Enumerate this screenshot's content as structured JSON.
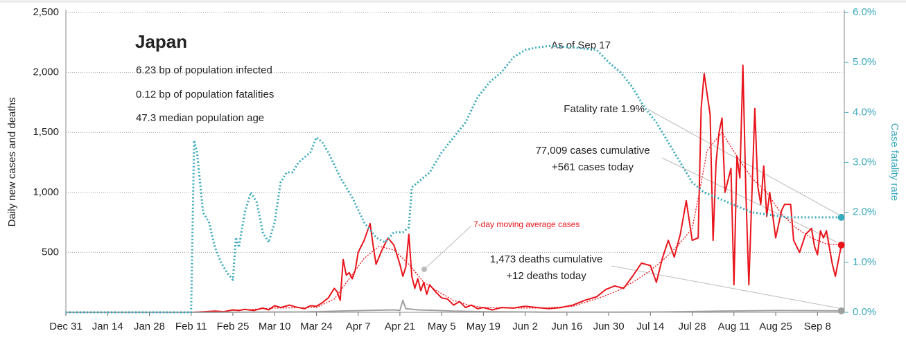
{
  "chart_data": {
    "type": "line",
    "title": "Japan",
    "annotations": [
      "6.23 bp of population infected",
      "0.12 bp of population fatalities",
      "47.3 median population age",
      "As of Sep 17",
      "Fatality rate 1.9%",
      "77,009 cases cumulative",
      "+561 cases today",
      "1,473 deaths cumulative",
      "+12 deaths today",
      "7-day moving average cases"
    ],
    "ylabel": "Daily new cases and deaths",
    "y2label": "Case fatality rate",
    "xlim": [
      0,
      261
    ],
    "xticks": [
      {
        "value": 0,
        "label": "Dec 31"
      },
      {
        "value": 14,
        "label": "Jan 14"
      },
      {
        "value": 28,
        "label": "Jan 28"
      },
      {
        "value": 42,
        "label": "Feb 11"
      },
      {
        "value": 56,
        "label": "Feb 25"
      },
      {
        "value": 70,
        "label": "Mar 10"
      },
      {
        "value": 84,
        "label": "Mar 24"
      },
      {
        "value": 98,
        "label": "Apr 7"
      },
      {
        "value": 112,
        "label": "Apr 21"
      },
      {
        "value": 126,
        "label": "May 5"
      },
      {
        "value": 140,
        "label": "May 19"
      },
      {
        "value": 154,
        "label": "Jun 2"
      },
      {
        "value": 168,
        "label": "Jun 16"
      },
      {
        "value": 182,
        "label": "Jun 30"
      },
      {
        "value": 196,
        "label": "Jul 14"
      },
      {
        "value": 210,
        "label": "Jul 28"
      },
      {
        "value": 224,
        "label": "Aug 11"
      },
      {
        "value": 238,
        "label": "Aug 25"
      },
      {
        "value": 252,
        "label": "Sep 8"
      }
    ],
    "ylim": [
      0,
      2500
    ],
    "yticks": [
      {
        "value": 500,
        "label": "500"
      },
      {
        "value": 1000,
        "label": "1,000"
      },
      {
        "value": 1500,
        "label": "1,500"
      },
      {
        "value": 2000,
        "label": "2,000"
      },
      {
        "value": 2500,
        "label": "2,500"
      }
    ],
    "y2lim": [
      0,
      6
    ],
    "y2ticks": [
      {
        "value": 0,
        "label": "0.0%"
      },
      {
        "value": 1,
        "label": "1.0%"
      },
      {
        "value": 2,
        "label": "2.0%"
      },
      {
        "value": 3,
        "label": "3.0%"
      },
      {
        "value": 4,
        "label": "4.0%"
      },
      {
        "value": 5,
        "label": "5.0%"
      },
      {
        "value": 6,
        "label": "6.0%"
      }
    ],
    "grid": true,
    "series": [
      {
        "name": "Daily new cases",
        "color": "#e8141b",
        "dotted": false,
        "end_dot": true,
        "x": [
          0,
          7,
          14,
          21,
          28,
          35,
          42,
          45,
          50,
          53,
          56,
          58,
          60,
          63,
          66,
          68,
          70,
          72,
          75,
          77,
          80,
          82,
          84,
          86,
          88,
          90,
          91,
          92,
          93,
          94,
          95,
          96,
          97,
          98,
          100,
          102,
          103,
          104,
          106,
          108,
          110,
          112,
          113,
          114,
          115,
          116,
          117,
          118,
          119,
          120,
          121,
          122,
          124,
          126,
          128,
          130,
          132,
          134,
          136,
          138,
          140,
          143,
          146,
          150,
          154,
          158,
          162,
          166,
          170,
          174,
          178,
          181,
          184,
          187,
          190,
          193,
          196,
          198,
          200,
          202,
          204,
          206,
          208,
          210,
          212,
          213,
          214,
          216,
          217,
          218,
          219,
          220,
          221,
          223,
          224,
          225,
          226,
          227,
          228,
          229,
          231,
          232,
          233,
          234,
          235,
          236,
          238,
          240,
          241,
          243,
          244,
          246,
          248,
          250,
          251,
          252,
          253,
          254,
          255,
          257,
          258,
          260
        ],
        "values": [
          0,
          0,
          0,
          0,
          0,
          0,
          0,
          3,
          10,
          5,
          20,
          15,
          25,
          15,
          35,
          20,
          55,
          40,
          60,
          45,
          30,
          55,
          50,
          80,
          120,
          200,
          170,
          100,
          440,
          310,
          330,
          280,
          350,
          500,
          600,
          740,
          560,
          400,
          520,
          620,
          560,
          400,
          300,
          380,
          650,
          300,
          200,
          280,
          180,
          250,
          150,
          230,
          170,
          120,
          110,
          60,
          90,
          40,
          60,
          30,
          40,
          20,
          40,
          35,
          50,
          40,
          30,
          40,
          60,
          100,
          130,
          190,
          220,
          200,
          300,
          410,
          390,
          250,
          450,
          600,
          460,
          650,
          930,
          600,
          620,
          1700,
          1990,
          1650,
          600,
          1250,
          1500,
          1620,
          1000,
          1200,
          230,
          1300,
          1120,
          2060,
          1000,
          230,
          1700,
          1050,
          900,
          1220,
          800,
          1000,
          620,
          850,
          900,
          900,
          600,
          500,
          650,
          700,
          550,
          480,
          680,
          620,
          680,
          400,
          300,
          561
        ]
      },
      {
        "name": "7-day moving average cases",
        "color": "#e8141b",
        "dotted": true,
        "end_dot": false,
        "x": [
          56,
          70,
          84,
          90,
          95,
          100,
          105,
          110,
          115,
          120,
          125,
          130,
          135,
          140,
          150,
          160,
          170,
          175,
          180,
          185,
          190,
          195,
          200,
          205,
          210,
          212,
          215,
          220,
          225,
          230,
          235,
          240,
          245,
          250,
          255,
          260
        ],
        "values": [
          15,
          35,
          40,
          110,
          280,
          450,
          550,
          520,
          400,
          250,
          170,
          100,
          60,
          40,
          35,
          35,
          50,
          90,
          130,
          180,
          250,
          330,
          430,
          550,
          700,
          950,
          1350,
          1500,
          1300,
          1120,
          1000,
          820,
          700,
          620,
          570,
          560
        ]
      },
      {
        "name": "Daily deaths",
        "color": "#a0a0a0",
        "dotted": false,
        "end_dot": true,
        "x": [
          0,
          50,
          60,
          80,
          100,
          110,
          112,
          113,
          114,
          118,
          125,
          130,
          140,
          160,
          180,
          200,
          220,
          240,
          260
        ],
        "values": [
          0,
          0,
          2,
          3,
          15,
          20,
          15,
          100,
          30,
          20,
          15,
          10,
          5,
          2,
          1,
          3,
          10,
          15,
          12
        ]
      },
      {
        "name": "Case fatality rate",
        "color": "#3aa9bd",
        "dotted": true,
        "end_dot": true,
        "axis": "y2",
        "x": [
          0,
          42,
          43,
          44,
          46,
          48,
          50,
          52,
          54,
          56,
          57,
          58,
          60,
          62,
          64,
          66,
          68,
          70,
          72,
          74,
          76,
          78,
          80,
          82,
          84,
          86,
          88,
          92,
          96,
          100,
          104,
          107,
          110,
          113,
          115,
          116,
          118,
          122,
          126,
          130,
          134,
          138,
          142,
          146,
          150,
          154,
          158,
          162,
          170,
          178,
          182,
          186,
          190,
          194,
          198,
          202,
          206,
          210,
          214,
          218,
          222,
          226,
          230,
          236,
          242,
          250,
          260
        ],
        "values": [
          0,
          0,
          3.44,
          3.2,
          2.0,
          1.8,
          1.3,
          1.0,
          0.8,
          0.65,
          1.5,
          1.3,
          2.0,
          2.4,
          2.2,
          1.6,
          1.4,
          1.8,
          2.6,
          2.8,
          2.8,
          3.0,
          3.1,
          3.2,
          3.5,
          3.4,
          3.2,
          2.7,
          2.3,
          1.8,
          1.5,
          1.4,
          1.6,
          1.6,
          1.7,
          2.5,
          2.6,
          2.8,
          3.2,
          3.5,
          3.8,
          4.3,
          4.6,
          4.8,
          5.1,
          5.25,
          5.3,
          5.33,
          5.3,
          5.25,
          5.0,
          4.8,
          4.5,
          4.1,
          3.8,
          3.4,
          3.0,
          2.6,
          2.4,
          2.3,
          2.2,
          2.1,
          2.0,
          1.95,
          1.9,
          1.9,
          1.9
        ]
      }
    ]
  }
}
